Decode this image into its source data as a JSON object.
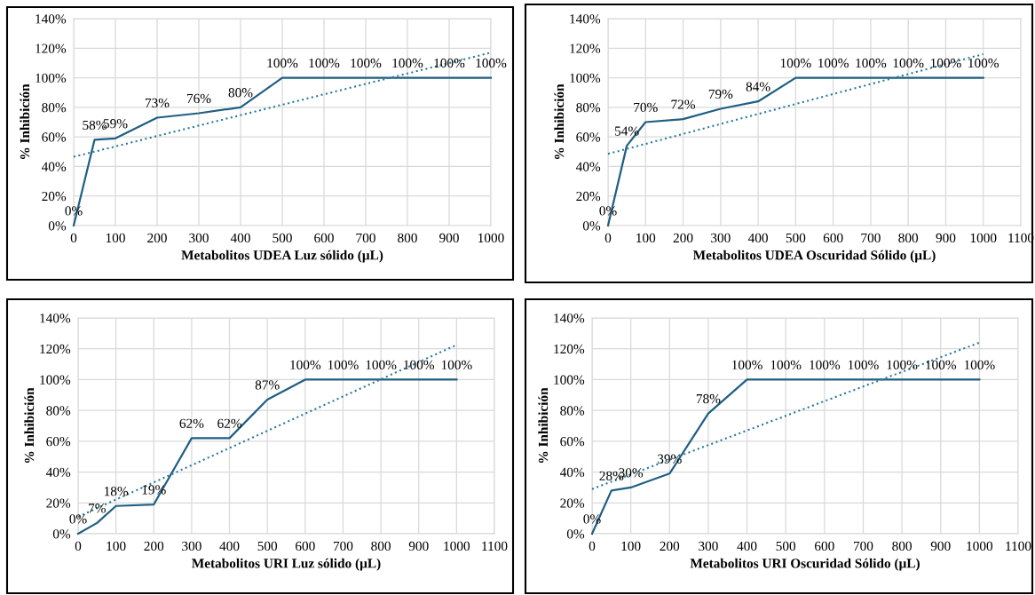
{
  "chart_data": [
    {
      "type": "line",
      "xlabel": "Metabolitos UDEA Luz sólido (µL)",
      "ylabel": "% Inhibición",
      "xlim": [
        0,
        1000
      ],
      "xticks": [
        0,
        100,
        200,
        300,
        400,
        500,
        600,
        700,
        800,
        900,
        1000
      ],
      "ylim": [
        0,
        140
      ],
      "yticks": [
        {
          "value": 0,
          "label": "0%"
        },
        {
          "value": 20,
          "label": "20%"
        },
        {
          "value": 40,
          "label": "40%"
        },
        {
          "value": 60,
          "label": "60%"
        },
        {
          "value": 80,
          "label": "80%"
        },
        {
          "value": 100,
          "label": "100%"
        },
        {
          "value": 120,
          "label": "120%"
        },
        {
          "value": 140,
          "label": "140%"
        }
      ],
      "grid": true,
      "series": [
        {
          "color": "#1f5f82",
          "line_style": "solid",
          "x": [
            0,
            50,
            100,
            200,
            300,
            400,
            500,
            600,
            700,
            800,
            900,
            1000
          ],
          "values": [
            0,
            58,
            59,
            73,
            76,
            80,
            100,
            100,
            100,
            100,
            100,
            100
          ],
          "value_labels": [
            "0%",
            "58%",
            "59%",
            "73%",
            "76%",
            "80%",
            "100%",
            "100%",
            "100%",
            "100%",
            "100%",
            "100%"
          ]
        },
        {
          "color": "#2a7a9c",
          "line_style": "dotted",
          "x": [
            0,
            1000
          ],
          "values": [
            46.5,
            117
          ]
        }
      ]
    },
    {
      "type": "line",
      "xlabel": "Metabolitos UDEA Oscuridad Sólido (µL)",
      "ylabel": "% Inhibición",
      "xlim": [
        0,
        1100
      ],
      "xticks": [
        0,
        100,
        200,
        300,
        400,
        500,
        600,
        700,
        800,
        900,
        1000,
        1100
      ],
      "ylim": [
        0,
        140
      ],
      "yticks": [
        {
          "value": 0,
          "label": "0%"
        },
        {
          "value": 20,
          "label": "20%"
        },
        {
          "value": 40,
          "label": "40%"
        },
        {
          "value": 60,
          "label": "60%"
        },
        {
          "value": 80,
          "label": "80%"
        },
        {
          "value": 100,
          "label": "100%"
        },
        {
          "value": 120,
          "label": "120%"
        },
        {
          "value": 140,
          "label": "140%"
        }
      ],
      "grid": true,
      "series": [
        {
          "color": "#1f5f82",
          "line_style": "solid",
          "x": [
            0,
            50,
            100,
            200,
            300,
            400,
            500,
            600,
            700,
            800,
            900,
            1000
          ],
          "values": [
            0,
            54,
            70,
            72,
            79,
            84,
            100,
            100,
            100,
            100,
            100,
            100
          ],
          "value_labels": [
            "0%",
            "54%",
            "70%",
            "72%",
            "79%",
            "84%",
            "100%",
            "100%",
            "100%",
            "100%",
            "100%",
            "100%"
          ]
        },
        {
          "color": "#2a7a9c",
          "line_style": "dotted",
          "x": [
            0,
            1000
          ],
          "values": [
            48.5,
            116
          ]
        }
      ]
    },
    {
      "type": "line",
      "xlabel": "Metabolitos URI Luz sólido (µL)",
      "ylabel": "% Inhibición",
      "xlim": [
        0,
        1100
      ],
      "xticks": [
        0,
        100,
        200,
        300,
        400,
        500,
        600,
        700,
        800,
        900,
        1000,
        1100
      ],
      "ylim": [
        0,
        140
      ],
      "yticks": [
        {
          "value": 0,
          "label": "0%"
        },
        {
          "value": 20,
          "label": "20%"
        },
        {
          "value": 40,
          "label": "40%"
        },
        {
          "value": 60,
          "label": "60%"
        },
        {
          "value": 80,
          "label": "80%"
        },
        {
          "value": 100,
          "label": "100%"
        },
        {
          "value": 120,
          "label": "120%"
        },
        {
          "value": 140,
          "label": "140%"
        }
      ],
      "grid": true,
      "series": [
        {
          "color": "#1f5f82",
          "line_style": "solid",
          "x": [
            0,
            50,
            100,
            200,
            300,
            400,
            500,
            600,
            700,
            800,
            900,
            1000
          ],
          "values": [
            0,
            7,
            18,
            19,
            62,
            62,
            87,
            100,
            100,
            100,
            100,
            100
          ],
          "value_labels": [
            "0%",
            "7%",
            "18%",
            "19%",
            "62%",
            "62%",
            "87%",
            "100%",
            "100%",
            "100%",
            "100%",
            "100%"
          ]
        },
        {
          "color": "#2a7a9c",
          "line_style": "dotted",
          "x": [
            0,
            1000
          ],
          "values": [
            11,
            122.5
          ]
        }
      ]
    },
    {
      "type": "line",
      "xlabel": "Metabolitos URI Oscuridad Sólido (µL)",
      "ylabel": "% Inhibición",
      "xlim": [
        0,
        1100
      ],
      "xticks": [
        0,
        100,
        200,
        300,
        400,
        500,
        600,
        700,
        800,
        900,
        1000,
        1100
      ],
      "ylim": [
        0,
        140
      ],
      "yticks": [
        {
          "value": 0,
          "label": "0%"
        },
        {
          "value": 20,
          "label": "20%"
        },
        {
          "value": 40,
          "label": "40%"
        },
        {
          "value": 60,
          "label": "60%"
        },
        {
          "value": 80,
          "label": "80%"
        },
        {
          "value": 100,
          "label": "100%"
        },
        {
          "value": 120,
          "label": "120%"
        },
        {
          "value": 140,
          "label": "140%"
        }
      ],
      "grid": true,
      "series": [
        {
          "color": "#1f5f82",
          "line_style": "solid",
          "x": [
            0,
            50,
            100,
            200,
            300,
            400,
            500,
            600,
            700,
            800,
            900,
            1000
          ],
          "values": [
            0,
            28,
            30,
            39,
            78,
            100,
            100,
            100,
            100,
            100,
            100,
            100
          ],
          "value_labels": [
            "0%",
            "28%",
            "30%",
            "39%",
            "78%",
            "100%",
            "100%",
            "100%",
            "100%",
            "100%",
            "100%",
            "100%"
          ]
        },
        {
          "color": "#2a7a9c",
          "line_style": "dotted",
          "x": [
            0,
            1000
          ],
          "values": [
            29,
            124
          ]
        }
      ]
    }
  ]
}
